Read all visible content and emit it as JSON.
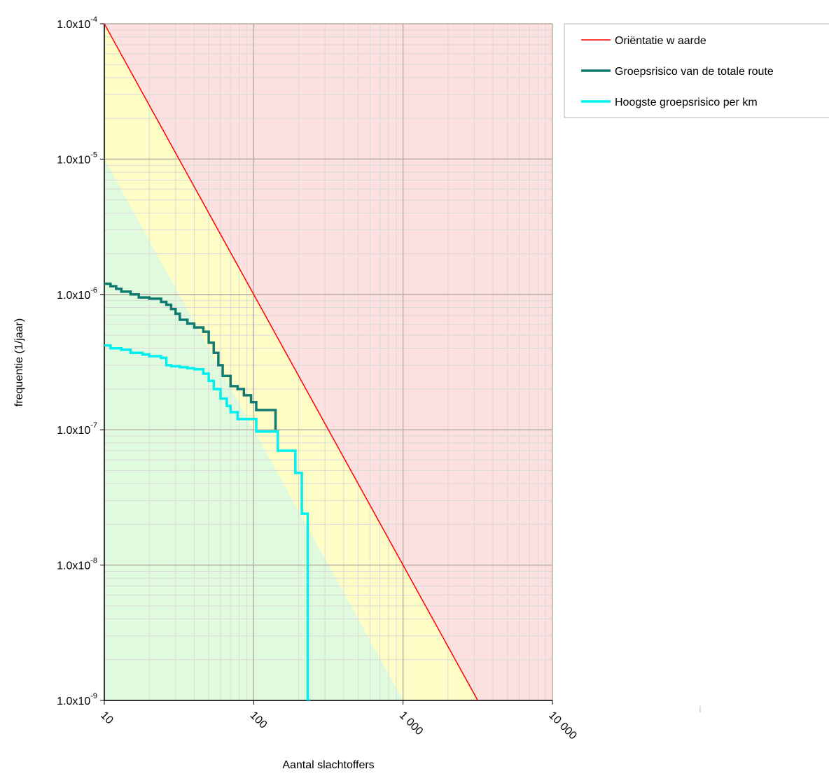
{
  "chart_data": {
    "type": "line",
    "xscale": "log",
    "yscale": "log",
    "xlim": [
      10,
      10000
    ],
    "ylim": [
      1e-09,
      0.0001
    ],
    "xlabel": "Aantal slachtoffers",
    "ylabel": "frequentie (1/jaar)",
    "x_ticks": [
      {
        "value": 10,
        "label": "10"
      },
      {
        "value": 100,
        "label": "100"
      },
      {
        "value": 1000,
        "label": "1 000"
      },
      {
        "value": 10000,
        "label": "10 000"
      }
    ],
    "y_ticks": [
      {
        "value": 0.0001,
        "mantissa": "1.0x10",
        "exp": "-4"
      },
      {
        "value": 1e-05,
        "mantissa": "1.0x10",
        "exp": "-5"
      },
      {
        "value": 1e-06,
        "mantissa": "1.0x10",
        "exp": "-6"
      },
      {
        "value": 1e-07,
        "mantissa": "1.0x10",
        "exp": "-7"
      },
      {
        "value": 1e-08,
        "mantissa": "1.0x10",
        "exp": "-8"
      },
      {
        "value": 1e-09,
        "mantissa": "1.0x10",
        "exp": "-9"
      }
    ],
    "grid": true,
    "legend_position": "top-right",
    "background_zones": [
      {
        "name": "above-orientation",
        "color": "#fde0e0"
      },
      {
        "name": "between",
        "color": "#fefdc6"
      },
      {
        "name": "below-tenth",
        "color": "#dffadc"
      }
    ],
    "series": [
      {
        "name": "Oriëntatie w aarde",
        "color": "#ff0000",
        "style": "line",
        "x": [
          10,
          3162
        ],
        "y": [
          0.0001,
          1e-09
        ]
      },
      {
        "name": "Groepsrisico van de totale route",
        "color": "#117a72",
        "style": "step",
        "x": [
          10,
          11,
          12,
          13,
          15,
          17,
          20,
          24,
          26,
          28,
          30,
          32,
          36,
          40,
          46,
          50,
          54,
          58,
          62,
          70,
          78,
          86,
          96,
          104,
          112,
          128,
          140
        ],
        "y": [
          1.2e-06,
          1.15e-06,
          1.1e-06,
          1.05e-06,
          1e-06,
          9.5e-07,
          9.3e-07,
          8.8e-07,
          8.4e-07,
          7.8e-07,
          7.2e-07,
          6.5e-07,
          6.1e-07,
          5.7e-07,
          5.3e-07,
          4.4e-07,
          3.7e-07,
          3e-07,
          2.5e-07,
          2.1e-07,
          2e-07,
          1.8e-07,
          1.6e-07,
          1.4e-07,
          1.4e-07,
          1.4e-07,
          1e-07
        ]
      },
      {
        "name": "Hoogste groepsrisico per km",
        "color": "#00f0f0",
        "style": "step",
        "x": [
          10,
          11,
          13,
          15,
          18,
          20,
          24,
          26,
          28,
          32,
          36,
          40,
          46,
          50,
          54,
          60,
          66,
          70,
          78,
          86,
          104,
          140,
          145,
          190,
          210,
          230,
          240
        ],
        "y": [
          4.2e-07,
          4e-07,
          3.9e-07,
          3.7e-07,
          3.6e-07,
          3.5e-07,
          3.4e-07,
          3e-07,
          2.95e-07,
          2.9e-07,
          2.85e-07,
          2.8e-07,
          2.6e-07,
          2.3e-07,
          2e-07,
          1.7e-07,
          1.5e-07,
          1.35e-07,
          1.2e-07,
          1.2e-07,
          9.7e-08,
          9.7e-08,
          7e-08,
          4.8e-08,
          2.4e-08,
          1e-09,
          1e-09
        ]
      }
    ],
    "annotation": "¡"
  }
}
